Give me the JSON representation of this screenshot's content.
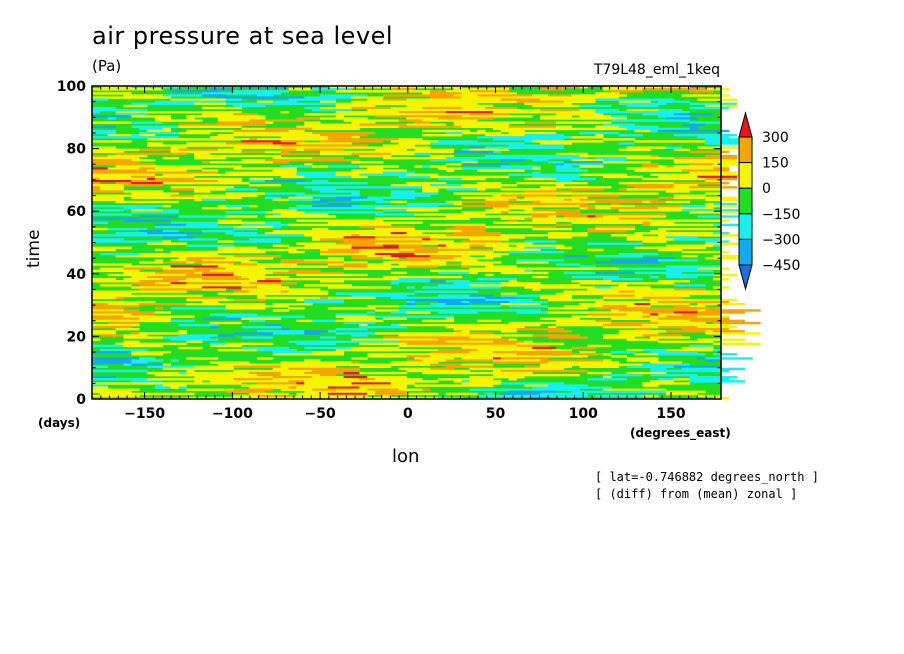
{
  "chart_data": {
    "type": "heatmap",
    "title": "air pressure at sea level",
    "units": "(Pa)",
    "run_name": "T79L48_eml_1keq",
    "xlabel": "lon",
    "ylabel": "time",
    "x_units": "(degrees_east)",
    "y_units": "(days)",
    "xlim": [
      -180,
      178.5
    ],
    "ylim": [
      0,
      100
    ],
    "x_ticks": [
      -150,
      -100,
      -50,
      0,
      50,
      100,
      150
    ],
    "y_ticks": [
      0,
      20,
      40,
      60,
      80,
      100
    ],
    "notes": [
      "[ lat=-0.746882 degrees_north ]",
      "[ (diff) from (mean) zonal ]"
    ],
    "colorbar": {
      "levels": [
        -450,
        -300,
        -150,
        0,
        150,
        300
      ],
      "level_labels": [
        "300",
        "150",
        "0",
        "−150",
        "−300",
        "−450"
      ],
      "colors": [
        "#1a6fe0",
        "#14a8f0",
        "#18f0f0",
        "#22dd22",
        "#f5f500",
        "#f5a500",
        "#e8171d"
      ],
      "extend": "both"
    }
  }
}
